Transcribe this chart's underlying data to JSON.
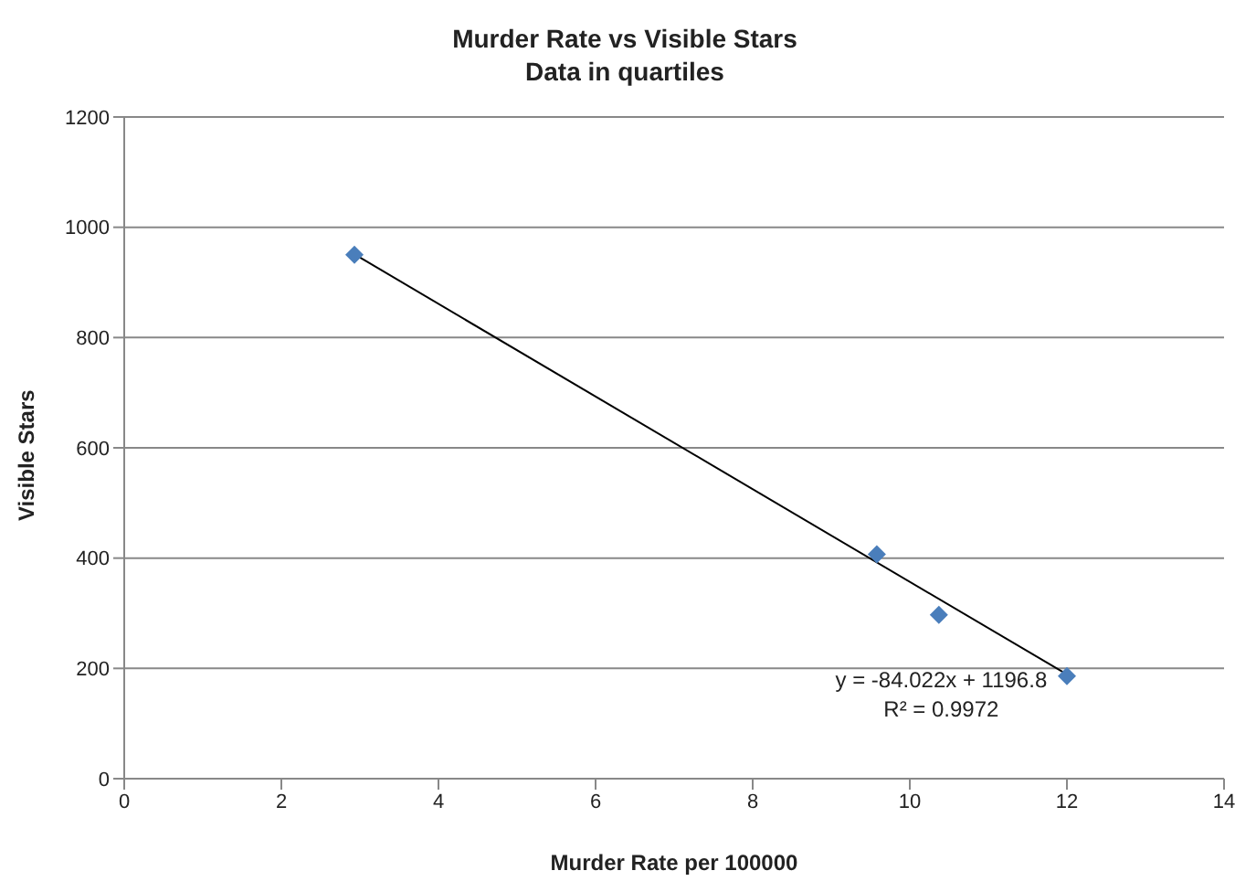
{
  "chart_data": {
    "type": "scatter",
    "title": "Murder Rate vs Visible Stars",
    "subtitle": "Data in quartiles",
    "xlabel": "Murder Rate per 100000",
    "ylabel": "Visible Stars",
    "series": [
      {
        "color": "#4a7ebb",
        "marker": "diamond",
        "x": [
          2.93,
          9.58,
          10.37,
          12.0
        ],
        "values": [
          950,
          407,
          297,
          186
        ]
      },
      {
        "type": "line",
        "color": "#000000",
        "marker": "none",
        "x": [
          2.93,
          12.0
        ],
        "values": [
          951,
          189
        ]
      }
    ],
    "annotations": [
      "y = -84.022x + 1196.8",
      "R² = 0.9972"
    ],
    "xlim": [
      0,
      14
    ],
    "xticks": [
      0,
      2,
      4,
      6,
      8,
      10,
      12,
      14
    ],
    "ylim": [
      0,
      1200
    ],
    "yticks": [
      0,
      200,
      400,
      600,
      800,
      1000,
      1200
    ],
    "grid": "y"
  }
}
